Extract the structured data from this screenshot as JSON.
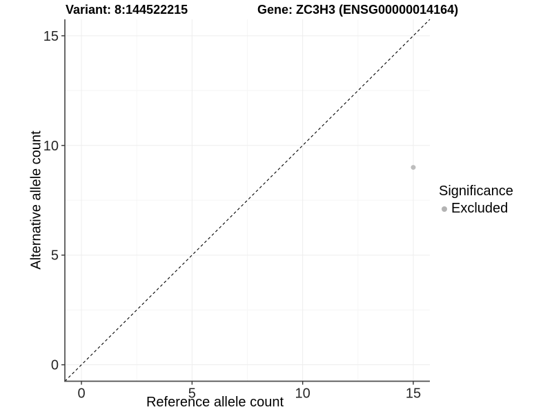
{
  "chart_data": {
    "type": "scatter",
    "title_left": "Variant: 8:144522215",
    "title_right": "Gene: ZC3H3 (ENSG00000014164)",
    "xlabel": "Reference allele count",
    "ylabel": "Alternative allele count",
    "xlim": [
      -0.75,
      15.75
    ],
    "ylim": [
      -0.75,
      15.75
    ],
    "xticks": [
      0,
      5,
      10,
      15
    ],
    "yticks": [
      0,
      5,
      10,
      15
    ],
    "grid": {
      "major": true,
      "minor": true,
      "background": "#ffffff"
    },
    "series": [
      {
        "name": "Excluded",
        "color": "#bdbdbd",
        "points": [
          {
            "x": 15,
            "y": 9
          }
        ]
      }
    ],
    "reference_line": {
      "kind": "identity",
      "equation": "y = x",
      "style": "dashed",
      "color": "#000000"
    },
    "legend": {
      "title": "Significance",
      "position": "right",
      "entries": [
        {
          "label": "Excluded",
          "color": "#b3b3b3"
        }
      ]
    },
    "colors": {
      "axis_line": "#4d4d4d",
      "tick_mark": "#333333",
      "tick_label": "#262626",
      "grid_major": "#ededed",
      "grid_minor": "#f6f6f6"
    }
  }
}
